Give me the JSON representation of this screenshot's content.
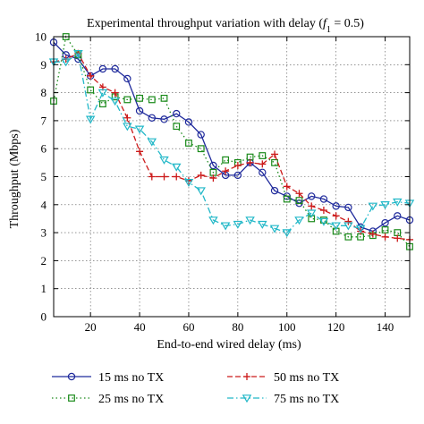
{
  "chart_data": {
    "type": "line",
    "title_main": "Experimental throughput variation with delay (",
    "title_var": "f",
    "title_sub": "1",
    "title_rest": " = 0.5)",
    "xlabel": "End-to-end wired delay (ms)",
    "ylabel": "Throughput (Mbps)",
    "xlim": [
      5,
      150
    ],
    "ylim": [
      0,
      10
    ],
    "xticks": [
      20,
      40,
      60,
      80,
      100,
      120,
      140
    ],
    "yticks": [
      0,
      1,
      2,
      3,
      4,
      5,
      6,
      7,
      8,
      9,
      10
    ],
    "grid": true,
    "legend_position": "bottom",
    "series": [
      {
        "name": "15 ms no TX",
        "color": "#1f2a9c",
        "dash": "solid",
        "marker": "circle",
        "x": [
          5,
          10,
          15,
          20,
          25,
          30,
          35,
          40,
          45,
          50,
          55,
          60,
          65,
          70,
          75,
          80,
          85,
          90,
          95,
          100,
          105,
          110,
          115,
          120,
          125,
          130,
          135,
          140,
          145,
          150
        ],
        "y": [
          9.8,
          9.35,
          9.2,
          8.6,
          8.85,
          8.85,
          8.5,
          7.35,
          7.1,
          7.05,
          7.25,
          6.95,
          6.5,
          5.4,
          5.05,
          5.05,
          5.5,
          5.15,
          4.5,
          4.3,
          4.05,
          4.3,
          4.2,
          3.95,
          3.9,
          3.2,
          3.05,
          3.35,
          3.6,
          3.45
        ]
      },
      {
        "name": "25 ms no TX",
        "color": "#1a8a1a",
        "dash": "dot",
        "marker": "square",
        "x": [
          5,
          10,
          15,
          20,
          25,
          30,
          35,
          40,
          45,
          50,
          55,
          60,
          65,
          70,
          75,
          80,
          85,
          90,
          95,
          100,
          105,
          110,
          115,
          120,
          125,
          130,
          135,
          140,
          145,
          150
        ],
        "y": [
          7.7,
          10.0,
          9.35,
          8.1,
          7.6,
          7.85,
          7.75,
          7.8,
          7.75,
          7.8,
          6.8,
          6.2,
          6.0,
          5.15,
          5.6,
          5.5,
          5.7,
          5.75,
          5.5,
          4.2,
          4.15,
          3.5,
          3.45,
          3.05,
          2.85,
          2.85,
          2.9,
          3.1,
          3.0,
          2.5
        ]
      },
      {
        "name": "50 ms no TX",
        "color": "#cc1a1a",
        "dash": "dash",
        "marker": "plus",
        "x": [
          5,
          10,
          15,
          20,
          25,
          30,
          35,
          40,
          45,
          50,
          55,
          60,
          65,
          70,
          75,
          80,
          85,
          90,
          95,
          100,
          105,
          110,
          115,
          120,
          125,
          130,
          135,
          140,
          145,
          150
        ],
        "y": [
          9.1,
          9.2,
          9.4,
          8.6,
          8.2,
          8.0,
          7.1,
          5.9,
          5.0,
          5.0,
          5.0,
          4.85,
          5.05,
          4.95,
          5.2,
          5.4,
          5.5,
          5.45,
          5.8,
          4.65,
          4.4,
          3.95,
          3.8,
          3.6,
          3.4,
          3.05,
          2.95,
          2.85,
          2.8,
          2.75
        ]
      },
      {
        "name": "75 ms no TX",
        "color": "#22b8c8",
        "dash": "dashdot",
        "marker": "triangle-down",
        "x": [
          5,
          10,
          15,
          20,
          25,
          30,
          35,
          40,
          45,
          50,
          55,
          60,
          65,
          70,
          75,
          80,
          85,
          90,
          95,
          100,
          105,
          110,
          115,
          120,
          125,
          130,
          135,
          140,
          145,
          150
        ],
        "y": [
          9.1,
          9.1,
          9.4,
          7.05,
          8.0,
          7.7,
          6.8,
          6.7,
          6.25,
          5.6,
          5.35,
          4.8,
          4.5,
          3.45,
          3.25,
          3.3,
          3.45,
          3.3,
          3.15,
          3.0,
          3.45,
          3.7,
          3.4,
          3.25,
          3.25,
          3.15,
          3.95,
          4.0,
          4.1,
          4.05
        ]
      }
    ]
  }
}
